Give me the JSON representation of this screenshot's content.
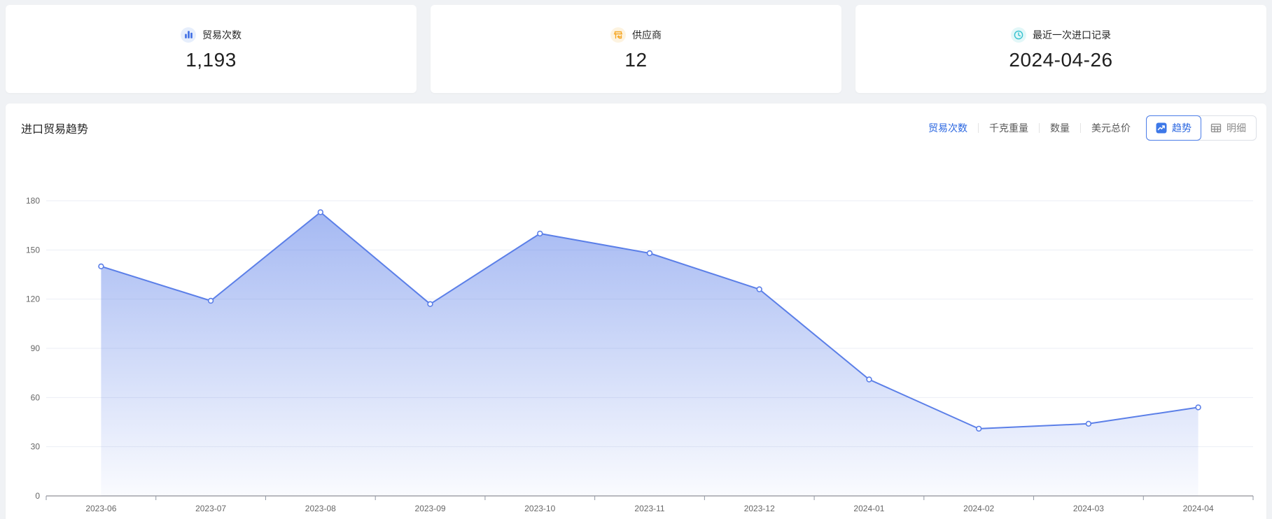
{
  "colors": {
    "page_bg": "#F0F2F5",
    "accent_blue": "#2A66E0",
    "line_blue": "#5B7FE8",
    "grid_line": "#EBEEF5",
    "axis_line": "#75757D",
    "axis_text": "#666666",
    "card1_icon": "#3D6DE3",
    "card1_icon_bg": "#E6EEFC",
    "card2_icon": "#F5A623",
    "card2_icon_bg": "#FDF3E0",
    "card3_icon": "#36C2CF",
    "card3_icon_bg": "#E2F7F8"
  },
  "stat_cards": [
    {
      "label": "贸易次数",
      "value": "1,193",
      "icon": "bar-chart-icon"
    },
    {
      "label": "供应商",
      "value": "12",
      "icon": "supplier-icon"
    },
    {
      "label": "最近一次进口记录",
      "value": "2024-04-26",
      "icon": "clock-icon"
    }
  ],
  "chart_section": {
    "title": "进口贸易趋势",
    "metric_tabs": [
      {
        "label": "贸易次数",
        "active": true
      },
      {
        "label": "千克重量",
        "active": false
      },
      {
        "label": "数量",
        "active": false
      },
      {
        "label": "美元总价",
        "active": false
      }
    ],
    "view_toggle": [
      {
        "label": "趋势",
        "icon": "trend-icon",
        "active": true
      },
      {
        "label": "明细",
        "icon": "table-icon",
        "active": false
      }
    ]
  },
  "chart_data": {
    "type": "area",
    "title": "进口贸易趋势",
    "x": [
      "2023-06",
      "2023-07",
      "2023-08",
      "2023-09",
      "2023-10",
      "2023-11",
      "2023-12",
      "2024-01",
      "2024-02",
      "2024-03",
      "2024-04"
    ],
    "series": [
      {
        "name": "贸易次数",
        "values": [
          140,
          119,
          173,
          117,
          160,
          148,
          126,
          71,
          41,
          44,
          54
        ]
      }
    ],
    "ylim": [
      0,
      180
    ],
    "ytick_interval": 30,
    "yticks": [
      0,
      30,
      60,
      90,
      120,
      150,
      180
    ],
    "grid": true,
    "legend_position": "none"
  }
}
